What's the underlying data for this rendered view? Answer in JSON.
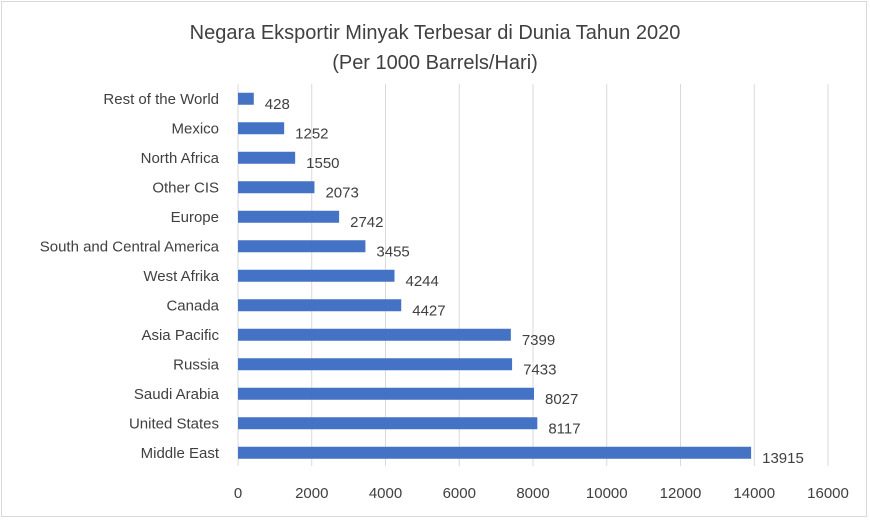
{
  "chart_data": {
    "type": "bar",
    "orientation": "horizontal",
    "title": "Negara Eksportir Minyak Terbesar di Dunia Tahun 2020",
    "subtitle": "(Per 1000 Barrels/Hari)",
    "categories": [
      "Rest of the World",
      "Mexico",
      "North Africa",
      "Other CIS",
      "Europe",
      "South and Central America",
      "West Afrika",
      "Canada",
      "Asia Pacific",
      "Russia",
      "Saudi Arabia",
      "United States",
      "Middle East"
    ],
    "values": [
      428,
      1252,
      1550,
      2073,
      2742,
      3455,
      4244,
      4427,
      7399,
      7433,
      8027,
      8117,
      13915
    ],
    "value_labels": [
      "428",
      "1252",
      "1550",
      "2073",
      "2742",
      "3455",
      "4244",
      "4427",
      "7399",
      "7433",
      "8027",
      "8117",
      "13915"
    ],
    "xlim": [
      0,
      16000
    ],
    "x_ticks": [
      "0",
      "2000",
      "4000",
      "6000",
      "8000",
      "10000",
      "12000",
      "14000",
      "16000"
    ],
    "grid": "vertical",
    "legend": "none",
    "bar_color": "#4472c4",
    "grid_color": "#d9d9d9",
    "text_color": "#404040"
  }
}
